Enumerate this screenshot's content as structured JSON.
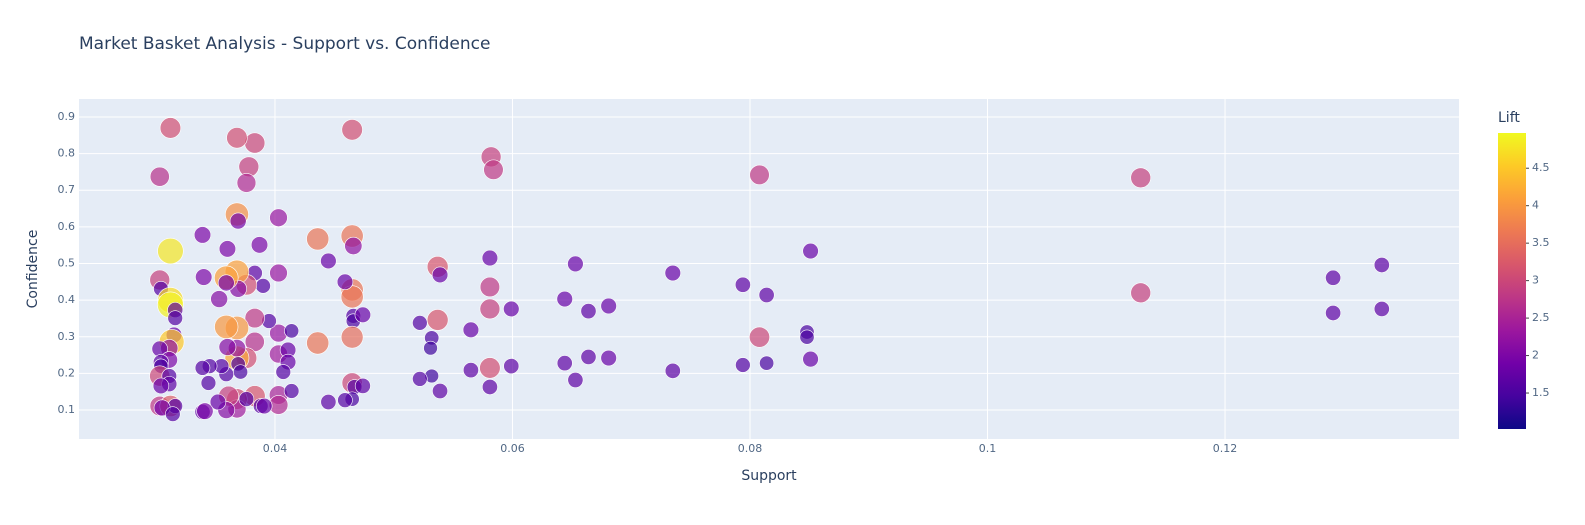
{
  "chart_data": {
    "type": "scatter",
    "title": "Market Basket Analysis - Support vs. Confidence",
    "xlabel": "Support",
    "ylabel": "Confidence",
    "colorbar_title": "Lift",
    "x": [
      0.1332,
      0.1291,
      0.1291,
      0.1332,
      0.1129,
      0.1129,
      0.0851,
      0.0848,
      0.0848,
      0.0851,
      0.0808,
      0.0808,
      0.0814,
      0.0814,
      0.0794,
      0.0794,
      0.0735,
      0.0735,
      0.0681,
      0.0681,
      0.0664,
      0.0664,
      0.0653,
      0.0653,
      0.0644,
      0.0644,
      0.0599,
      0.0599,
      0.0582,
      0.0584,
      0.0581,
      0.0581,
      0.0581,
      0.0581,
      0.0581,
      0.0565,
      0.0565,
      0.0537,
      0.0539,
      0.0537,
      0.0539,
      0.0532,
      0.0531,
      0.0532,
      0.0522,
      0.0522,
      0.0465,
      0.0465,
      0.0466,
      0.0465,
      0.0465,
      0.0466,
      0.0466,
      0.0474,
      0.0465,
      0.0465,
      0.0467,
      0.0474,
      0.0465,
      0.0459,
      0.0459,
      0.0445,
      0.0436,
      0.0436,
      0.0445,
      0.0403,
      0.0403,
      0.0403,
      0.0403,
      0.0403,
      0.0403,
      0.0411,
      0.0411,
      0.0407,
      0.0414,
      0.0414,
      0.0395,
      0.039,
      0.0387,
      0.0383,
      0.0383,
      0.0383,
      0.0383,
      0.0383,
      0.0378,
      0.0376,
      0.0376,
      0.0376,
      0.0368,
      0.0368,
      0.0369,
      0.0368,
      0.0369,
      0.0368,
      0.0368,
      0.0368,
      0.0369,
      0.0371,
      0.0368,
      0.0368,
      0.0376,
      0.0388,
      0.0391,
      0.0361,
      0.0359,
      0.0359,
      0.036,
      0.036,
      0.0359,
      0.0359,
      0.0359,
      0.0355,
      0.0353,
      0.0352,
      0.0344,
      0.0345,
      0.034,
      0.0339,
      0.0339,
      0.0339,
      0.0341,
      0.0312,
      0.0303,
      0.0312,
      0.0303,
      0.0304,
      0.0312,
      0.0312,
      0.0316,
      0.0316,
      0.0315,
      0.0313,
      0.0311,
      0.0303,
      0.0311,
      0.0304,
      0.0304,
      0.0303,
      0.0311,
      0.0311,
      0.0304,
      0.0303,
      0.0312,
      0.0316,
      0.0305,
      0.0314
    ],
    "y": [
      0.496,
      0.461,
      0.365,
      0.376,
      0.734,
      0.42,
      0.534,
      0.313,
      0.299,
      0.239,
      0.742,
      0.299,
      0.414,
      0.228,
      0.442,
      0.223,
      0.474,
      0.207,
      0.384,
      0.242,
      0.37,
      0.245,
      0.499,
      0.182,
      0.403,
      0.228,
      0.376,
      0.22,
      0.791,
      0.756,
      0.515,
      0.436,
      0.376,
      0.215,
      0.163,
      0.319,
      0.209,
      0.491,
      0.469,
      0.346,
      0.152,
      0.297,
      0.269,
      0.193,
      0.338,
      0.185,
      0.865,
      0.575,
      0.548,
      0.428,
      0.409,
      0.357,
      0.343,
      0.36,
      0.299,
      0.174,
      0.163,
      0.166,
      0.13,
      0.127,
      0.45,
      0.507,
      0.567,
      0.283,
      0.122,
      0.625,
      0.474,
      0.31,
      0.253,
      0.141,
      0.114,
      0.264,
      0.231,
      0.204,
      0.316,
      0.152,
      0.343,
      0.439,
      0.551,
      0.829,
      0.474,
      0.351,
      0.286,
      0.138,
      0.764,
      0.72,
      0.442,
      0.242,
      0.843,
      0.634,
      0.616,
      0.477,
      0.431,
      0.324,
      0.242,
      0.269,
      0.226,
      0.204,
      0.13,
      0.103,
      0.13,
      0.111,
      0.111,
      0.138,
      0.461,
      0.327,
      0.54,
      0.272,
      0.447,
      0.198,
      0.1,
      0.22,
      0.403,
      0.122,
      0.174,
      0.22,
      0.463,
      0.578,
      0.215,
      0.095,
      0.097,
      0.87,
      0.737,
      0.534,
      0.455,
      0.431,
      0.4,
      0.387,
      0.373,
      0.351,
      0.305,
      0.286,
      0.269,
      0.267,
      0.237,
      0.231,
      0.22,
      0.193,
      0.193,
      0.171,
      0.166,
      0.111,
      0.111,
      0.111,
      0.106,
      0.089
    ],
    "lift": [
      1.7,
      1.7,
      1.7,
      1.7,
      2.9,
      2.9,
      1.8,
      1.5,
      1.5,
      1.8,
      2.8,
      3.0,
      1.7,
      1.5,
      1.7,
      1.6,
      1.8,
      1.7,
      1.8,
      1.8,
      1.7,
      1.7,
      1.8,
      1.7,
      1.8,
      1.7,
      1.8,
      1.7,
      2.9,
      2.8,
      1.8,
      2.8,
      2.9,
      3.1,
      1.7,
      1.8,
      1.7,
      3.2,
      1.8,
      3.2,
      1.7,
      1.5,
      1.4,
      1.4,
      1.6,
      1.6,
      3.1,
      3.6,
      2.2,
      3.6,
      3.6,
      1.6,
      1.5,
      1.8,
      3.5,
      3.0,
      1.6,
      1.7,
      1.5,
      1.6,
      1.8,
      1.8,
      3.6,
      3.6,
      1.7,
      2.3,
      2.3,
      2.3,
      2.4,
      2.5,
      2.6,
      1.8,
      1.8,
      1.6,
      1.5,
      1.6,
      1.6,
      1.6,
      2.0,
      3.0,
      1.7,
      2.8,
      2.7,
      3.2,
      2.9,
      2.6,
      3.1,
      3.1,
      3.1,
      3.9,
      1.9,
      4.1,
      2.1,
      4.0,
      4.2,
      2.2,
      1.5,
      1.5,
      3.1,
      2.4,
      1.6,
      1.6,
      1.8,
      2.9,
      4.1,
      4.0,
      2.0,
      2.1,
      1.9,
      1.6,
      2.1,
      1.6,
      2.1,
      1.8,
      1.6,
      1.6,
      2.0,
      2.0,
      1.6,
      1.7,
      2.0,
      3.1,
      2.7,
      4.8,
      2.9,
      1.6,
      4.7,
      4.9,
      1.7,
      1.6,
      1.8,
      4.5,
      2.2,
      1.8,
      2.0,
      1.7,
      1.5,
      3.0,
      1.6,
      1.7,
      1.8,
      2.8,
      3.3,
      1.6,
      1.9,
      1.6
    ],
    "xlim": [
      0.0235,
      0.1397
    ],
    "ylim": [
      0.021,
      0.949
    ],
    "xticks": [
      0.04,
      0.06,
      0.08,
      0.1,
      0.12
    ],
    "yticks": [
      0.1,
      0.2,
      0.3,
      0.4,
      0.5,
      0.6,
      0.7,
      0.8,
      0.9
    ],
    "colorbar_lim": [
      1.02,
      4.97
    ],
    "colorbar_ticks": [
      1.5,
      2,
      2.5,
      3,
      3.5,
      4,
      4.5
    ],
    "colorscale": [
      "#0d0887",
      "#46039f",
      "#7201a8",
      "#9c179e",
      "#bd3786",
      "#d8576b",
      "#ed7953",
      "#fb9f3a",
      "#fdca26",
      "#f0f921"
    ],
    "grid": true
  }
}
